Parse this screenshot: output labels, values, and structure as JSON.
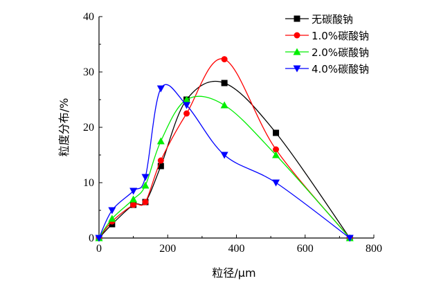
{
  "chart_data": {
    "type": "line",
    "xlabel": "粒径/μm",
    "ylabel": "粒度分布/%",
    "xlim": [
      0,
      800
    ],
    "ylim": [
      0,
      40
    ],
    "xticks": [
      0,
      200,
      400,
      600,
      800
    ],
    "yticks": [
      0,
      10,
      20,
      30,
      40
    ],
    "grid": false,
    "legend_position": "top-right",
    "series": [
      {
        "name": "无碳酸钠",
        "color": "#000000",
        "marker": "square",
        "x": [
          0,
          38,
          100,
          135,
          180,
          255,
          365,
          515,
          730
        ],
        "y": [
          0,
          2.5,
          6,
          6.5,
          13,
          25,
          28,
          19,
          0
        ]
      },
      {
        "name": "1.0%碳酸钠",
        "color": "#ff0000",
        "marker": "circle",
        "x": [
          0,
          38,
          100,
          135,
          180,
          255,
          365,
          515,
          730
        ],
        "y": [
          0,
          3,
          6,
          6.5,
          14,
          22.5,
          32.3,
          16,
          0
        ]
      },
      {
        "name": "2.0%碳酸钠",
        "color": "#00ee00",
        "marker": "triangle-up",
        "x": [
          0,
          38,
          100,
          135,
          180,
          255,
          365,
          515,
          730
        ],
        "y": [
          0,
          3.5,
          7,
          9.5,
          17.5,
          25,
          24,
          15,
          0
        ]
      },
      {
        "name": "4.0%碳酸钠",
        "color": "#0000ff",
        "marker": "triangle-down",
        "x": [
          0,
          38,
          100,
          135,
          180,
          255,
          365,
          515,
          730
        ],
        "y": [
          0,
          5,
          8.5,
          11,
          27,
          24,
          15,
          10,
          0
        ]
      }
    ]
  }
}
